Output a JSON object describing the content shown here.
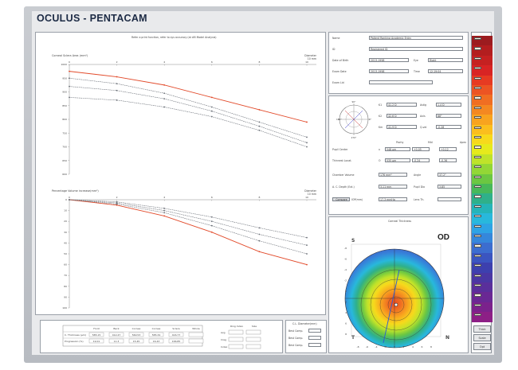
{
  "app": {
    "title": "OCULUS - PENTACAM"
  },
  "plot_panel": {
    "header_note": "Refer a print function, refer to sys accuracy (at #8 Model Analysis)",
    "top_chart": {
      "title": "Corneal Sclera Area (mm²)",
      "axis_label": "Diameter",
      "axis_unit": "10 mm",
      "x_ticks": [
        "0",
        "2",
        "4",
        "6",
        "8",
        "10"
      ],
      "y_ticks": [
        "1000",
        "950",
        "900",
        "850",
        "800",
        "750",
        "700",
        "650",
        "600"
      ]
    },
    "bottom_chart": {
      "title": "Percentage Volume increase(mm³)",
      "axis_label": "Diameter",
      "axis_unit": "10 mm",
      "x_ticks": [
        "0",
        "2",
        "4",
        "6",
        "8",
        "10"
      ],
      "y_ticks": [
        "0",
        "10",
        "20",
        "30",
        "40",
        "50",
        "60",
        "70",
        "80",
        "90",
        "100"
      ]
    }
  },
  "chart_data": [
    {
      "type": "line",
      "title": "Corneal Sclera Area (mm²)",
      "xlabel": "Diameter",
      "x": [
        0,
        2,
        4,
        6,
        8,
        10
      ],
      "ylim": [
        600,
        1000
      ],
      "series": [
        {
          "values": [
            975,
            955,
            925,
            880,
            835,
            790
          ],
          "color": "#e24a2a"
        },
        {
          "values": [
            950,
            930,
            895,
            845,
            790,
            735
          ],
          "color": "#6b7078"
        },
        {
          "values": [
            920,
            905,
            875,
            830,
            775,
            715
          ],
          "color": "#6b7078"
        },
        {
          "values": [
            880,
            870,
            845,
            810,
            760,
            700
          ],
          "color": "#6b7078"
        }
      ]
    },
    {
      "type": "line",
      "title": "Percentage Volume increase(mm³)",
      "xlabel": "Diameter",
      "x": [
        0,
        2,
        4,
        6,
        8,
        10
      ],
      "ylim": [
        0,
        100
      ],
      "series": [
        {
          "values": [
            0,
            5,
            15,
            30,
            48,
            60
          ],
          "color": "#e24a2a"
        },
        {
          "values": [
            0,
            4,
            12,
            24,
            38,
            50
          ],
          "color": "#6b7078"
        },
        {
          "values": [
            0,
            3,
            10,
            20,
            32,
            42
          ],
          "color": "#6b7078"
        },
        {
          "values": [
            0,
            2,
            8,
            16,
            26,
            35
          ],
          "color": "#6b7078"
        }
      ]
    }
  ],
  "bottom_table": {
    "headers": [
      "Front",
      "Back",
      "Cornea",
      "Cornea",
      "Sclera",
      "Whole"
    ],
    "rows": [
      {
        "label": "C. Thickness (µm)",
        "cells": [
          "585.15",
          "412.47",
          "560.53",
          "585.34",
          "416.77",
          ""
        ]
      },
      {
        "label": "Progression (%)",
        "cells": [
          "19.01",
          "11.3",
          "15.45",
          "16.43",
          "166.85",
          ""
        ]
      }
    ],
    "side_header": [
      "Ring Index",
      "Size"
    ],
    "side_rows": [
      {
        "label": "Avg",
        "values": [
          "",
          ""
        ]
      },
      {
        "label": "Irreg",
        "values": [
          "",
          ""
        ]
      },
      {
        "label": "Index",
        "values": [
          "",
          ""
        ]
      }
    ]
  },
  "diameter_panel": {
    "title": "C.L. Diameter(mm)",
    "rows": [
      {
        "label": "Best Comp.",
        "value": ""
      },
      {
        "label": "Best Comp.",
        "value": ""
      },
      {
        "label": "Best Comp.",
        "value": ""
      }
    ]
  },
  "patient": {
    "rows": [
      {
        "label": "Name",
        "value": "Patient Ranking Academic Entry"
      },
      {
        "label": "ID",
        "value": "Registered ID"
      },
      {
        "label": "Date of Birth",
        "value": "2013-1998",
        "label2": "Eye",
        "value2": "Right"
      },
      {
        "label": "Exam Date",
        "value": "2013-1998",
        "label2": "Time",
        "value2": "12:19:04"
      },
      {
        "label": "Exam Lid",
        "value": ""
      }
    ]
  },
  "keratometry": {
    "compass": [
      "90°",
      "180°",
      "0°",
      "270°"
    ],
    "rows": [
      {
        "label": "K1",
        "value": "41.2 D",
        "label2": "Astig",
        "value2": "1.4 D"
      },
      {
        "label": "K2",
        "value": "42.6 D",
        "label2": "Axis",
        "value2": "88°"
      },
      {
        "label": "Km",
        "value": "41.9 D",
        "label2": "Q-val",
        "value2": "-0.28"
      }
    ],
    "table_headers": [
      "Pachy",
      "Mid",
      "Apex"
    ],
    "table_rows": [
      {
        "label": "Pupil Center",
        "prefix": "x",
        "values": [
          "548 µm",
          "+0.05",
          "+0.12"
        ]
      },
      {
        "label": "Thinnest Locat.",
        "prefix": "O",
        "values": [
          "535 µm",
          "-0.24",
          "-0.36"
        ]
      }
    ],
    "extra_rows": [
      {
        "label": "Chamber Volume",
        "value": "176 mm³",
        "label2": "Angle",
        "value2": "37.2°"
      },
      {
        "label": "A. C. Depth (Ext.)",
        "value": "3.11 mm",
        "label2": "Pupil Dia",
        "value2": "3.85"
      }
    ],
    "button": "Compare",
    "button_label": "IOP(mm)",
    "button_value": "17.3 mmHg",
    "lens_label": "Lens Th."
  },
  "corneal_map": {
    "title": "Corneal Thickness",
    "eye": "OD",
    "corner_top_left": "S",
    "corner_bottom_left": "T",
    "corner_bottom_right": "N",
    "axis_ticks": [
      "-8",
      "-6",
      "-4",
      "-2",
      "0",
      "2",
      "4",
      "6",
      "8"
    ]
  },
  "color_scale": {
    "colors": [
      "#9c1c1f",
      "#b31e1f",
      "#c52121",
      "#d82424",
      "#e63a22",
      "#ec5423",
      "#f06e22",
      "#f48821",
      "#f8a31f",
      "#fbbe1e",
      "#f7d91c",
      "#e6ea1c",
      "#bfe32a",
      "#93d736",
      "#6cc742",
      "#47b85a",
      "#2fb08a",
      "#25b4b8",
      "#28b8dc",
      "#2ea3e4",
      "#3587db",
      "#3c6dcf",
      "#3b55c0",
      "#3d40ae",
      "#4a37a3",
      "#5a2f9b",
      "#6a2894",
      "#7b228c",
      "#8d1f86"
    ],
    "buttons": [
      "Thick",
      "Scale",
      "Opt"
    ]
  }
}
